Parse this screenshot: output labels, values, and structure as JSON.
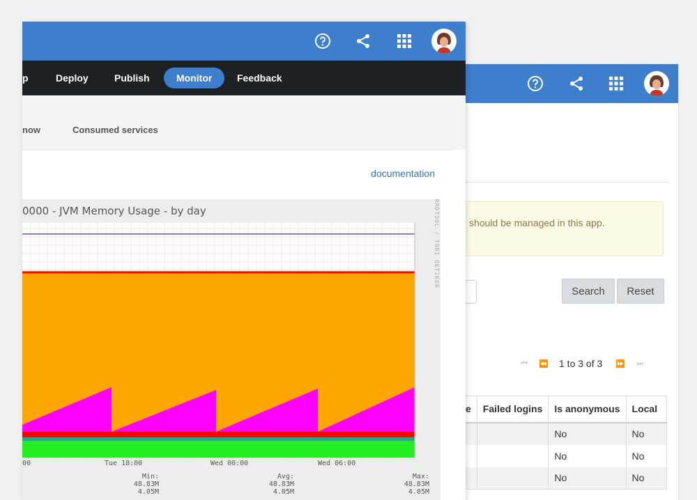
{
  "back_window": {
    "notice_text": "should be managed in this app.",
    "search_label": "Search",
    "reset_label": "Reset",
    "pager": {
      "first": "⏮",
      "prev": "⏪",
      "text": "1 to 3 of 3",
      "next": "⏩",
      "last": "⏭"
    },
    "table": {
      "headers": [
        "e",
        "Failed logins",
        "Is anonymous",
        "Local"
      ],
      "rows": [
        [
          "",
          "",
          "No",
          "No"
        ],
        [
          "",
          "",
          "No",
          "No"
        ],
        [
          "",
          "",
          "No",
          "No"
        ]
      ]
    },
    "icons": [
      "help-icon",
      "share-icon",
      "apps-icon"
    ]
  },
  "front_window": {
    "nav": {
      "item0": "p",
      "deploy": "Deploy",
      "publish": "Publish",
      "monitor": "Monitor",
      "feedback": "Feedback"
    },
    "tabs": {
      "now": "now",
      "consumed": "Consumed services"
    },
    "doc_link": "documentation",
    "icons": [
      "help-icon",
      "share-icon",
      "apps-icon"
    ],
    "accent": "#3e7fcd",
    "navbar_bg": "#1e2125"
  },
  "chart_data": {
    "type": "area",
    "title": "0000 - JVM Memory Usage - by day",
    "side_text": "RRDTOOL / TOBI OETIKER",
    "x_ticks": [
      "00",
      "Tue 18:00",
      "Wed 00:00",
      "Wed 06:00"
    ],
    "series_colors": {
      "max_line": "#5b5bb5",
      "committed": "#ffa500",
      "used": "#ff00ff",
      "red": "#ff0000",
      "green": "#22ee22"
    },
    "stats": [
      {
        "label": "Min:",
        "v1": "48.83M",
        "v2": "4.05M"
      },
      {
        "label": "Avg:",
        "v1": "48.83M",
        "v2": "4.05M"
      },
      {
        "label": "Max:",
        "v1": "48.83M",
        "v2": "4.05M"
      }
    ]
  }
}
